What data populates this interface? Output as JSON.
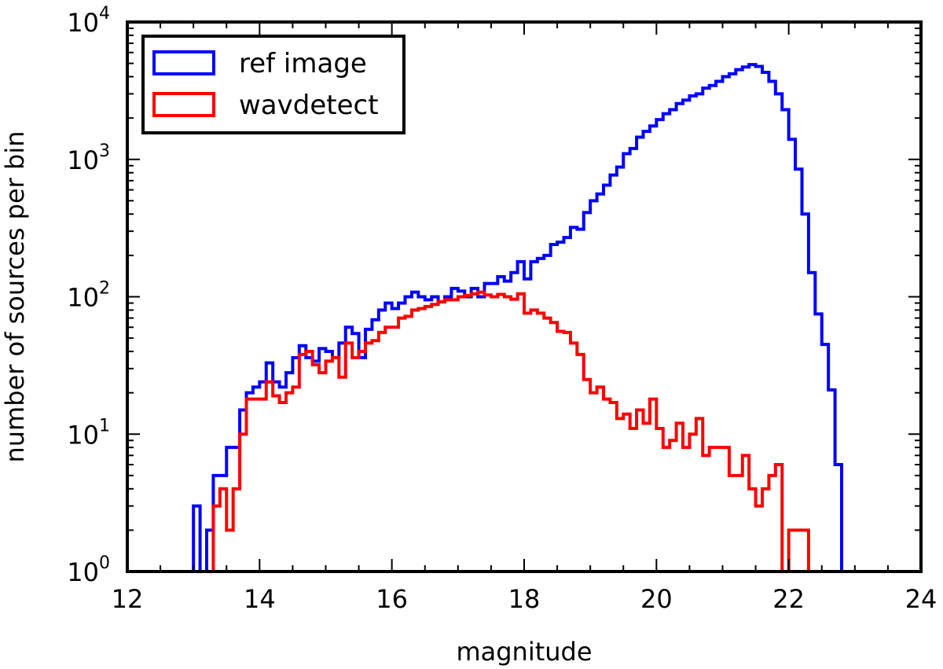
{
  "chart_data": {
    "type": "histogram",
    "title": "",
    "xlabel": "magnitude",
    "ylabel": "number of sources per bin",
    "xlim": [
      12,
      24
    ],
    "ylim": [
      1,
      10000
    ],
    "yscale": "log",
    "bin_width": 0.1,
    "grid": false,
    "legend_position": "top-left",
    "x_ticks": [
      "12",
      "14",
      "16",
      "18",
      "20",
      "22",
      "24"
    ],
    "y_ticks": [
      {
        "base": "10",
        "exp": "0"
      },
      {
        "base": "10",
        "exp": "1"
      },
      {
        "base": "10",
        "exp": "2"
      },
      {
        "base": "10",
        "exp": "3"
      },
      {
        "base": "10",
        "exp": "4"
      }
    ],
    "series": [
      {
        "name": "ref image",
        "color": "#0000ff",
        "bins": [
          [
            13.0,
            13.1,
            3
          ],
          [
            13.1,
            13.2,
            0
          ],
          [
            13.2,
            13.3,
            2
          ],
          [
            13.3,
            13.4,
            5
          ],
          [
            13.4,
            13.5,
            5
          ],
          [
            13.5,
            13.6,
            8
          ],
          [
            13.6,
            13.7,
            8
          ],
          [
            13.7,
            13.8,
            15
          ],
          [
            13.8,
            13.9,
            20
          ],
          [
            13.9,
            14.0,
            22
          ],
          [
            14.0,
            14.1,
            24
          ],
          [
            14.1,
            14.2,
            33
          ],
          [
            14.2,
            14.3,
            24
          ],
          [
            14.3,
            14.4,
            22
          ],
          [
            14.4,
            14.5,
            28
          ],
          [
            14.5,
            14.6,
            36
          ],
          [
            14.6,
            14.7,
            44
          ],
          [
            14.7,
            14.8,
            36
          ],
          [
            14.8,
            14.9,
            34
          ],
          [
            14.9,
            15.0,
            42
          ],
          [
            15.0,
            15.1,
            40
          ],
          [
            15.1,
            15.2,
            36
          ],
          [
            15.2,
            15.3,
            46
          ],
          [
            15.3,
            15.4,
            60
          ],
          [
            15.4,
            15.5,
            54
          ],
          [
            15.5,
            15.6,
            36
          ],
          [
            15.6,
            15.7,
            58
          ],
          [
            15.7,
            15.8,
            68
          ],
          [
            15.8,
            15.9,
            80
          ],
          [
            15.9,
            16.0,
            90
          ],
          [
            16.0,
            16.1,
            82
          ],
          [
            16.1,
            16.2,
            90
          ],
          [
            16.2,
            16.3,
            100
          ],
          [
            16.3,
            16.4,
            108
          ],
          [
            16.4,
            16.5,
            100
          ],
          [
            16.5,
            16.6,
            95
          ],
          [
            16.6,
            16.7,
            100
          ],
          [
            16.7,
            16.8,
            92
          ],
          [
            16.8,
            16.9,
            100
          ],
          [
            16.9,
            17.0,
            115
          ],
          [
            17.0,
            17.1,
            110
          ],
          [
            17.1,
            17.2,
            100
          ],
          [
            17.2,
            17.3,
            115
          ],
          [
            17.3,
            17.4,
            100
          ],
          [
            17.4,
            17.5,
            125
          ],
          [
            17.5,
            17.6,
            125
          ],
          [
            17.6,
            17.7,
            140
          ],
          [
            17.7,
            17.8,
            130
          ],
          [
            17.8,
            17.9,
            150
          ],
          [
            17.9,
            18.0,
            180
          ],
          [
            18.0,
            18.1,
            135
          ],
          [
            18.1,
            18.2,
            180
          ],
          [
            18.2,
            18.3,
            190
          ],
          [
            18.3,
            18.4,
            200
          ],
          [
            18.4,
            18.5,
            240
          ],
          [
            18.5,
            18.6,
            250
          ],
          [
            18.6,
            18.7,
            270
          ],
          [
            18.7,
            18.8,
            320
          ],
          [
            18.8,
            18.9,
            310
          ],
          [
            18.9,
            19.0,
            410
          ],
          [
            19.0,
            19.1,
            500
          ],
          [
            19.1,
            19.2,
            560
          ],
          [
            19.2,
            19.3,
            650
          ],
          [
            19.3,
            19.4,
            770
          ],
          [
            19.4,
            19.5,
            880
          ],
          [
            19.5,
            19.6,
            1100
          ],
          [
            19.6,
            19.7,
            1200
          ],
          [
            19.7,
            19.8,
            1450
          ],
          [
            19.8,
            19.9,
            1600
          ],
          [
            19.9,
            20.0,
            1750
          ],
          [
            20.0,
            20.1,
            1950
          ],
          [
            20.1,
            20.2,
            2150
          ],
          [
            20.2,
            20.3,
            2300
          ],
          [
            20.3,
            20.4,
            2550
          ],
          [
            20.4,
            20.5,
            2700
          ],
          [
            20.5,
            20.6,
            2900
          ],
          [
            20.6,
            20.7,
            3000
          ],
          [
            20.7,
            20.8,
            3300
          ],
          [
            20.8,
            20.9,
            3450
          ],
          [
            20.9,
            21.0,
            3700
          ],
          [
            21.0,
            21.1,
            4000
          ],
          [
            21.1,
            21.2,
            4200
          ],
          [
            21.2,
            21.3,
            4500
          ],
          [
            21.3,
            21.4,
            4700
          ],
          [
            21.4,
            21.5,
            4900
          ],
          [
            21.5,
            21.6,
            4750
          ],
          [
            21.6,
            21.7,
            4300
          ],
          [
            21.7,
            21.8,
            3700
          ],
          [
            21.8,
            21.9,
            3000
          ],
          [
            21.9,
            22.0,
            2300
          ],
          [
            22.0,
            22.1,
            1400
          ],
          [
            22.1,
            22.2,
            850
          ],
          [
            22.2,
            22.3,
            400
          ],
          [
            22.3,
            22.4,
            150
          ],
          [
            22.4,
            22.5,
            75
          ],
          [
            22.5,
            22.6,
            45
          ],
          [
            22.6,
            22.7,
            21
          ],
          [
            22.7,
            22.8,
            6
          ],
          [
            22.8,
            22.9,
            0
          ]
        ]
      },
      {
        "name": "wavdetect",
        "color": "#ff0000",
        "bins": [
          [
            13.3,
            13.4,
            3
          ],
          [
            13.4,
            13.5,
            4
          ],
          [
            13.5,
            13.6,
            2
          ],
          [
            13.6,
            13.7,
            4
          ],
          [
            13.7,
            13.8,
            10
          ],
          [
            13.8,
            13.9,
            18
          ],
          [
            13.9,
            14.0,
            18
          ],
          [
            14.0,
            14.1,
            18
          ],
          [
            14.1,
            14.2,
            24
          ],
          [
            14.2,
            14.3,
            19
          ],
          [
            14.3,
            14.4,
            17
          ],
          [
            14.4,
            14.5,
            20
          ],
          [
            14.5,
            14.6,
            22
          ],
          [
            14.6,
            14.7,
            38
          ],
          [
            14.7,
            14.8,
            40
          ],
          [
            14.8,
            14.9,
            32
          ],
          [
            14.9,
            15.0,
            28
          ],
          [
            15.0,
            15.1,
            34
          ],
          [
            15.1,
            15.2,
            36
          ],
          [
            15.2,
            15.3,
            26
          ],
          [
            15.3,
            15.4,
            46
          ],
          [
            15.4,
            15.5,
            36
          ],
          [
            15.5,
            15.6,
            40
          ],
          [
            15.6,
            15.7,
            46
          ],
          [
            15.7,
            15.8,
            48
          ],
          [
            15.8,
            15.9,
            55
          ],
          [
            15.9,
            16.0,
            60
          ],
          [
            16.0,
            16.1,
            60
          ],
          [
            16.1,
            16.2,
            70
          ],
          [
            16.2,
            16.3,
            72
          ],
          [
            16.3,
            16.4,
            80
          ],
          [
            16.4,
            16.5,
            82
          ],
          [
            16.5,
            16.6,
            85
          ],
          [
            16.6,
            16.7,
            88
          ],
          [
            16.7,
            16.8,
            92
          ],
          [
            16.8,
            16.9,
            95
          ],
          [
            16.9,
            17.0,
            95
          ],
          [
            17.0,
            17.1,
            100
          ],
          [
            17.1,
            17.2,
            102
          ],
          [
            17.2,
            17.3,
            105
          ],
          [
            17.3,
            17.4,
            108
          ],
          [
            17.4,
            17.5,
            103
          ],
          [
            17.5,
            17.6,
            100
          ],
          [
            17.6,
            17.7,
            104
          ],
          [
            17.7,
            17.8,
            100
          ],
          [
            17.8,
            17.9,
            96
          ],
          [
            17.9,
            18.0,
            105
          ],
          [
            18.0,
            18.1,
            76
          ],
          [
            18.1,
            18.2,
            80
          ],
          [
            18.2,
            18.3,
            76
          ],
          [
            18.3,
            18.4,
            70
          ],
          [
            18.4,
            18.5,
            65
          ],
          [
            18.5,
            18.6,
            56
          ],
          [
            18.6,
            18.7,
            55
          ],
          [
            18.7,
            18.8,
            46
          ],
          [
            18.8,
            18.9,
            38
          ],
          [
            18.9,
            19.0,
            25
          ],
          [
            19.0,
            19.1,
            20
          ],
          [
            19.1,
            19.2,
            22
          ],
          [
            19.2,
            19.3,
            18
          ],
          [
            19.3,
            19.4,
            17
          ],
          [
            19.4,
            19.5,
            13
          ],
          [
            19.5,
            19.6,
            14
          ],
          [
            19.6,
            19.7,
            11
          ],
          [
            19.7,
            19.8,
            15
          ],
          [
            19.8,
            19.9,
            12
          ],
          [
            19.9,
            20.0,
            18
          ],
          [
            20.0,
            20.1,
            11
          ],
          [
            20.1,
            20.2,
            8
          ],
          [
            20.2,
            20.3,
            9
          ],
          [
            20.3,
            20.4,
            12
          ],
          [
            20.4,
            20.5,
            8
          ],
          [
            20.5,
            20.6,
            10
          ],
          [
            20.6,
            20.7,
            13
          ],
          [
            20.7,
            20.8,
            7
          ],
          [
            20.8,
            20.9,
            8
          ],
          [
            20.9,
            21.0,
            8
          ],
          [
            21.0,
            21.1,
            8
          ],
          [
            21.1,
            21.2,
            5
          ],
          [
            21.2,
            21.3,
            5
          ],
          [
            21.3,
            21.4,
            7
          ],
          [
            21.4,
            21.5,
            4
          ],
          [
            21.5,
            21.6,
            3
          ],
          [
            21.6,
            21.7,
            4
          ],
          [
            21.7,
            21.8,
            5
          ],
          [
            21.8,
            21.9,
            6
          ],
          [
            21.9,
            22.0,
            0
          ],
          [
            22.0,
            22.1,
            2
          ],
          [
            22.1,
            22.2,
            2
          ],
          [
            22.2,
            22.3,
            2
          ]
        ]
      }
    ]
  }
}
